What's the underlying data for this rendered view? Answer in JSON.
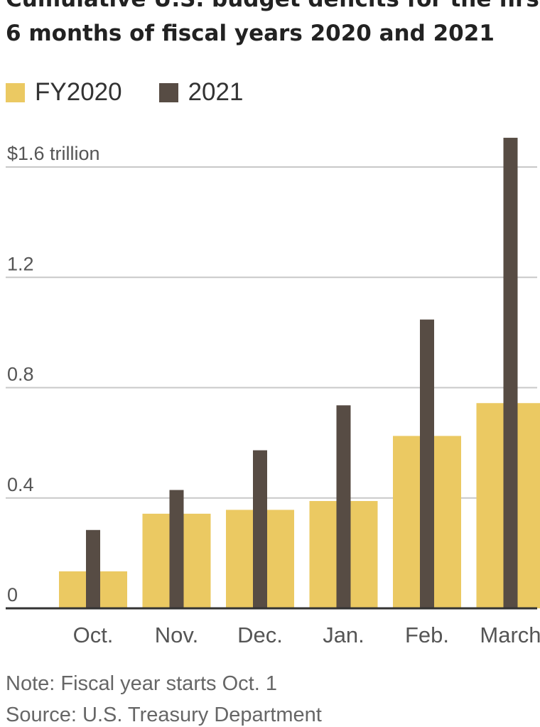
{
  "title": {
    "line1": "Cumulative U.S. budget deficits for the first",
    "line2": "6 months of fiscal years 2020 and 2021"
  },
  "colors": {
    "fy2020": "#EBC962",
    "fy2021": "#574C44",
    "grid": "#C8C8C8",
    "axis": "#333333",
    "tick_text": "#555555"
  },
  "chart_data": {
    "type": "bar",
    "categories": [
      "Oct.",
      "Nov.",
      "Dec.",
      "Jan.",
      "Feb.",
      "March"
    ],
    "series": [
      {
        "name": "FY2020",
        "values": [
          0.134,
          0.343,
          0.357,
          0.389,
          0.625,
          0.744
        ]
      },
      {
        "name": "2021",
        "values": [
          0.284,
          0.429,
          0.573,
          0.736,
          1.047,
          1.706
        ]
      }
    ],
    "yticks": [
      0,
      0.4,
      0.8,
      1.2,
      1.6
    ],
    "ytick_labels": [
      "0",
      "0.4",
      "0.8",
      "1.2",
      "$1.6 trillion"
    ],
    "ylim": [
      0,
      1.6
    ],
    "grid": true,
    "legend_position": "top-left"
  },
  "legend": {
    "fy2020_label": "FY2020",
    "fy2021_label": "2021"
  },
  "note": "Note: Fiscal year starts Oct. 1",
  "source": "Source: U.S. Treasury Department"
}
